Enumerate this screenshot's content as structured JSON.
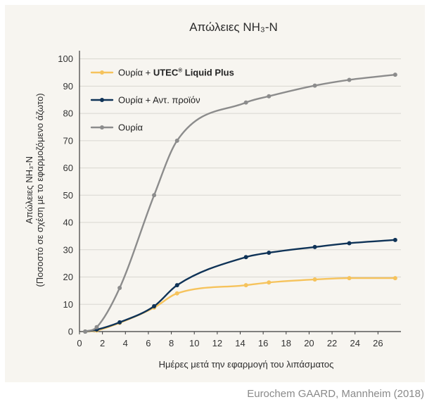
{
  "chart_data": {
    "type": "line",
    "title": "Απώλειες NH₃-N",
    "xlabel": "Ημέρες μετά την εφαρμογή του λιπάσματος",
    "ylabel": [
      "Απώλειες NH₃-N",
      "(Ποσοστό σε σχέση με το εφαρμοζόμενο άζωτο)"
    ],
    "xlim": [
      0,
      28
    ],
    "ylim": [
      0,
      103
    ],
    "xticks": [
      0,
      2,
      4,
      6,
      8,
      10,
      12,
      14,
      16,
      18,
      20,
      22,
      24,
      26
    ],
    "yticks": [
      0,
      10,
      20,
      30,
      40,
      50,
      60,
      70,
      80,
      90,
      100
    ],
    "grid": "horizontal",
    "legend_position": "top-left",
    "series": [
      {
        "name": "Ουρία + UTEC® Liquid Plus",
        "name_bold": "UTEC® Liquid Plus",
        "color": "#f6c35c",
        "x": [
          0.5,
          1.5,
          3.5,
          6.5,
          8.5,
          14.5,
          16.5,
          20.5,
          23.5,
          27.5
        ],
        "y": [
          0,
          0.4,
          3.2,
          8.8,
          14,
          17,
          18,
          19.1,
          19.6,
          19.6
        ]
      },
      {
        "name": "Ουρία + Αντ. προϊόν",
        "color": "#0f3357",
        "x": [
          0.5,
          1.5,
          3.5,
          6.5,
          8.5,
          14.5,
          16.5,
          20.5,
          23.5,
          27.5
        ],
        "y": [
          0,
          0.7,
          3.4,
          9.3,
          17,
          27.3,
          28.9,
          31,
          32.4,
          33.6
        ]
      },
      {
        "name": "Ουρία",
        "color": "#8c8c8c",
        "x": [
          0.5,
          1.5,
          3.5,
          6.5,
          8.5,
          14.5,
          16.5,
          20.5,
          23.5,
          27.5
        ],
        "y": [
          0,
          1.6,
          16,
          50,
          70,
          84,
          86.3,
          90.2,
          92.3,
          94.2
        ]
      }
    ]
  },
  "source": "Eurochem GAARD, Mannheim (2018)"
}
